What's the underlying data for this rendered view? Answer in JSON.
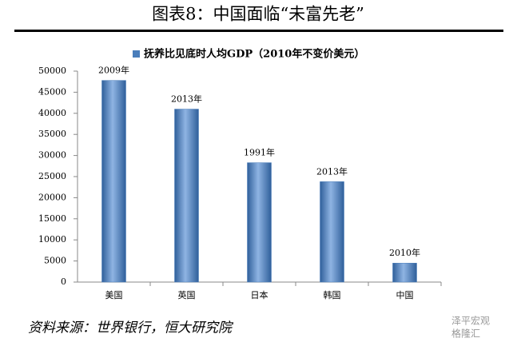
{
  "chart_data": {
    "type": "bar",
    "title": "图表8：中国面临“未富先老”",
    "legend": "抚养比见底时人均GDP（2010年不变价美元）",
    "categories": [
      "美国",
      "英国",
      "日本",
      "韩国",
      "中国"
    ],
    "values": [
      47800,
      41000,
      28300,
      23800,
      4500
    ],
    "annotations": [
      "2009年",
      "2013年",
      "1991年",
      "2013年",
      "2010年"
    ],
    "color": "#4a7ebb",
    "ylim": [
      0,
      50000
    ],
    "yticks": [
      0,
      5000,
      10000,
      15000,
      20000,
      25000,
      30000,
      35000,
      40000,
      45000,
      50000
    ],
    "grid": false,
    "source": "资料来源：世界银行，恒大研究院",
    "watermark": [
      "泽平宏观",
      "格隆汇"
    ]
  }
}
